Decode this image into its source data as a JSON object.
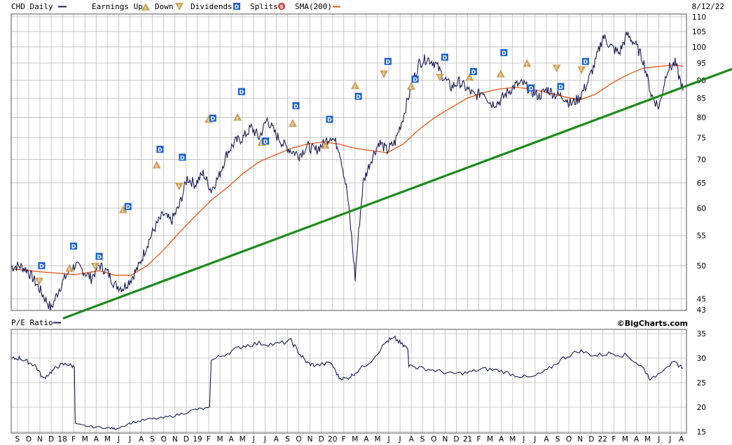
{
  "header": {
    "symbol_label": "CHD Daily",
    "earnings_up_label": "Earnings Up",
    "down_label": "Down",
    "dividends_label": "Dividends",
    "splits_label": "Splits",
    "sma_label": "SMA(200)",
    "date": "8/12/22"
  },
  "pe_panel": {
    "label": "P/E Ratio",
    "credit": "©BigCharts.com"
  },
  "colors": {
    "price": "#1c1c4e",
    "sma": "#e2581c",
    "trendline": "#1e8a1e",
    "grid": "#bdbdbd",
    "panel_border": "#555555",
    "earnings_marker": "#c9a35a",
    "dividend_marker": "#1a5fd0",
    "split_marker": "#c85050"
  },
  "chart_data": [
    {
      "type": "line",
      "title": "CHD Daily",
      "scale": "log",
      "ylim": [
        43,
        110
      ],
      "y_ticks": [
        45,
        50,
        55,
        60,
        65,
        70,
        75,
        80,
        85,
        90,
        95,
        100,
        105,
        110
      ],
      "y_tick_extra": [
        43
      ],
      "x_ticks": [
        "S",
        "O",
        "N",
        "D",
        "18",
        "F",
        "M",
        "A",
        "M",
        "J",
        "J",
        "A",
        "S",
        "O",
        "N",
        "D",
        "19",
        "F",
        "M",
        "A",
        "M",
        "J",
        "J",
        "A",
        "S",
        "O",
        "N",
        "D",
        "20",
        "F",
        "M",
        "A",
        "M",
        "J",
        "J",
        "A",
        "S",
        "O",
        "N",
        "D",
        "21",
        "F",
        "M",
        "A",
        "M",
        "J",
        "J",
        "A",
        "S",
        "O",
        "N",
        "D",
        "22",
        "F",
        "M",
        "A",
        "M",
        "J",
        "J",
        "A"
      ],
      "x_range": [
        "2017-09",
        "2022-08-12"
      ],
      "grid": true,
      "series": [
        {
          "name": "CHD Daily",
          "style": "price",
          "points": [
            [
              0,
              49.8
            ],
            [
              1,
              50.0
            ],
            [
              2,
              49.3
            ],
            [
              3,
              47.5
            ],
            [
              4,
              45.5
            ],
            [
              5,
              43.6
            ],
            [
              6,
              46.5
            ],
            [
              7,
              48.7
            ],
            [
              8,
              50.1
            ],
            [
              9,
              49.2
            ],
            [
              10,
              48.0
            ],
            [
              11,
              50.1
            ],
            [
              12,
              49.0
            ],
            [
              13,
              47.0
            ],
            [
              14,
              46.6
            ],
            [
              15,
              48.0
            ],
            [
              16,
              50.0
            ],
            [
              17,
              53.5
            ],
            [
              18,
              56.5
            ],
            [
              19,
              58.8
            ],
            [
              20,
              57.5
            ],
            [
              21,
              60.3
            ],
            [
              22,
              66.0
            ],
            [
              23,
              64.7
            ],
            [
              24,
              67.0
            ],
            [
              25,
              63.5
            ],
            [
              26,
              66.5
            ],
            [
              27,
              71.5
            ],
            [
              28,
              74.0
            ],
            [
              29,
              75.0
            ],
            [
              30,
              77.5
            ],
            [
              31,
              75.0
            ],
            [
              32,
              79.5
            ],
            [
              33,
              76.0
            ],
            [
              34,
              73.5
            ],
            [
              35,
              72.0
            ],
            [
              36,
              71.0
            ],
            [
              37,
              73.0
            ],
            [
              38,
              72.0
            ],
            [
              39,
              73.5
            ],
            [
              40,
              75.5
            ],
            [
              41,
              72.5
            ],
            [
              42,
              63.0
            ],
            [
              43,
              48.0
            ],
            [
              44,
              65.0
            ],
            [
              45,
              70.0
            ],
            [
              46,
              74.0
            ],
            [
              47,
              72.0
            ],
            [
              48,
              74.0
            ],
            [
              49,
              80.0
            ],
            [
              50,
              88.0
            ],
            [
              51,
              95.0
            ],
            [
              52,
              96.5
            ],
            [
              53,
              95.0
            ],
            [
              54,
              91.0
            ],
            [
              55,
              88.0
            ],
            [
              56,
              89.5
            ],
            [
              57,
              87.5
            ],
            [
              58,
              85.5
            ],
            [
              59,
              87.0
            ],
            [
              60,
              83.5
            ],
            [
              61,
              84.0
            ],
            [
              62,
              86.5
            ],
            [
              63,
              88.5
            ],
            [
              64,
              89.0
            ],
            [
              65,
              87.0
            ],
            [
              66,
              85.5
            ],
            [
              67,
              87.5
            ],
            [
              68,
              86.0
            ],
            [
              69,
              85.5
            ],
            [
              70,
              83.5
            ],
            [
              71,
              85.0
            ],
            [
              72,
              89.0
            ],
            [
              73,
              95.0
            ],
            [
              74,
              103.5
            ],
            [
              75,
              100.0
            ],
            [
              76,
              98.0
            ],
            [
              77,
              104.0
            ],
            [
              78,
              101.0
            ],
            [
              79,
              96.0
            ],
            [
              80,
              86.0
            ],
            [
              81,
              82.5
            ],
            [
              82,
              93.0
            ],
            [
              83,
              95.0
            ],
            [
              84,
              87.0
            ]
          ]
        },
        {
          "name": "SMA(200)",
          "style": "sma",
          "points": [
            [
              0,
              49.5
            ],
            [
              4,
              49.0
            ],
            [
              8,
              48.6
            ],
            [
              11,
              49.2
            ],
            [
              13,
              48.5
            ],
            [
              15,
              48.5
            ],
            [
              17,
              50.0
            ],
            [
              19,
              52.5
            ],
            [
              21,
              55.5
            ],
            [
              23,
              58.5
            ],
            [
              25,
              61.5
            ],
            [
              27,
              64.0
            ],
            [
              29,
              67.0
            ],
            [
              31,
              69.5
            ],
            [
              33,
              71.0
            ],
            [
              35,
              72.5
            ],
            [
              37,
              73.5
            ],
            [
              39,
              74.0
            ],
            [
              41,
              73.5
            ],
            [
              43,
              72.5
            ],
            [
              45,
              72.0
            ],
            [
              47,
              71.5
            ],
            [
              49,
              73.5
            ],
            [
              51,
              77.0
            ],
            [
              53,
              80.0
            ],
            [
              55,
              82.5
            ],
            [
              57,
              85.0
            ],
            [
              59,
              86.5
            ],
            [
              61,
              87.5
            ],
            [
              63,
              88.0
            ],
            [
              65,
              87.5
            ],
            [
              67,
              86.5
            ],
            [
              69,
              85.5
            ],
            [
              71,
              84.5
            ],
            [
              73,
              86.0
            ],
            [
              75,
              89.0
            ],
            [
              77,
              91.5
            ],
            [
              79,
              93.5
            ],
            [
              81,
              94.0
            ],
            [
              83,
              94.5
            ],
            [
              84,
              94.0
            ]
          ]
        },
        {
          "name": "",
          "style": "trendline",
          "points": [
            [
              0,
              42.3
            ],
            [
              84,
              90.0
            ]
          ]
        }
      ],
      "markers": [
        {
          "kind": "dividend",
          "x": 3.8,
          "y": 50.0
        },
        {
          "kind": "earnings_down",
          "x": 3.5,
          "y": 47.6
        },
        {
          "kind": "earnings_up",
          "x": 7.3,
          "y": 49.6
        },
        {
          "kind": "dividend",
          "x": 7.8,
          "y": 53.2
        },
        {
          "kind": "earnings_down",
          "x": 10.5,
          "y": 49.9
        },
        {
          "kind": "dividend",
          "x": 11.0,
          "y": 51.5
        },
        {
          "kind": "earnings_up",
          "x": 14.0,
          "y": 59.7
        },
        {
          "kind": "dividend",
          "x": 14.6,
          "y": 60.3
        },
        {
          "kind": "earnings_up",
          "x": 18.2,
          "y": 68.8
        },
        {
          "kind": "dividend",
          "x": 18.6,
          "y": 72.3
        },
        {
          "kind": "earnings_down",
          "x": 21.0,
          "y": 64.3
        },
        {
          "kind": "dividend",
          "x": 21.4,
          "y": 70.5
        },
        {
          "kind": "earnings_up",
          "x": 24.7,
          "y": 79.5
        },
        {
          "kind": "dividend",
          "x": 25.2,
          "y": 79.8
        },
        {
          "kind": "earnings_up",
          "x": 28.3,
          "y": 80.0
        },
        {
          "kind": "dividend",
          "x": 28.8,
          "y": 86.8
        },
        {
          "kind": "earnings_up",
          "x": 31.3,
          "y": 73.9
        },
        {
          "kind": "dividend",
          "x": 31.8,
          "y": 74.2
        },
        {
          "kind": "earnings_up",
          "x": 35.2,
          "y": 78.5
        },
        {
          "kind": "dividend",
          "x": 35.6,
          "y": 83.0
        },
        {
          "kind": "earnings_up",
          "x": 39.3,
          "y": 73.2
        },
        {
          "kind": "dividend",
          "x": 39.8,
          "y": 79.5
        },
        {
          "kind": "earnings_up",
          "x": 43.0,
          "y": 88.5
        },
        {
          "kind": "dividend",
          "x": 43.4,
          "y": 85.5
        },
        {
          "kind": "earnings_down",
          "x": 46.6,
          "y": 91.8
        },
        {
          "kind": "dividend",
          "x": 47.1,
          "y": 95.5
        },
        {
          "kind": "earnings_up",
          "x": 50.0,
          "y": 88.3
        },
        {
          "kind": "dividend",
          "x": 50.5,
          "y": 90.3
        },
        {
          "kind": "earnings_down",
          "x": 53.6,
          "y": 90.8
        },
        {
          "kind": "dividend",
          "x": 54.2,
          "y": 96.8
        },
        {
          "kind": "earnings_up",
          "x": 57.3,
          "y": 90.8
        },
        {
          "kind": "dividend",
          "x": 57.8,
          "y": 92.5
        },
        {
          "kind": "earnings_up",
          "x": 61.2,
          "y": 91.8
        },
        {
          "kind": "dividend",
          "x": 61.6,
          "y": 98.2
        },
        {
          "kind": "earnings_up",
          "x": 64.5,
          "y": 94.9
        },
        {
          "kind": "dividend",
          "x": 65.0,
          "y": 87.8
        },
        {
          "kind": "earnings_down",
          "x": 68.2,
          "y": 93.5
        },
        {
          "kind": "dividend",
          "x": 68.7,
          "y": 88.2
        },
        {
          "kind": "earnings_down",
          "x": 71.3,
          "y": 93.0
        },
        {
          "kind": "dividend",
          "x": 71.8,
          "y": 95.5
        }
      ]
    },
    {
      "type": "line",
      "title": "P/E Ratio",
      "ylim": [
        15,
        35
      ],
      "y_ticks": [
        15,
        20,
        25,
        30,
        35
      ],
      "grid": true,
      "series": [
        {
          "name": "P/E Ratio",
          "points": [
            [
              0,
              29.8
            ],
            [
              1,
              30.0
            ],
            [
              2,
              29.3
            ],
            [
              3,
              28.5
            ],
            [
              4,
              25.8
            ],
            [
              5,
              27.2
            ],
            [
              6,
              28.5
            ],
            [
              7,
              28.8
            ],
            [
              7.9,
              28.2
            ],
            [
              8.0,
              16.5
            ],
            [
              10,
              16.0
            ],
            [
              12,
              15.8
            ],
            [
              13,
              15.6
            ],
            [
              15,
              16.8
            ],
            [
              17,
              17.5
            ],
            [
              19,
              17.8
            ],
            [
              21,
              18.5
            ],
            [
              23,
              19.5
            ],
            [
              24.8,
              19.8
            ],
            [
              25.0,
              29.5
            ],
            [
              27,
              31.0
            ],
            [
              29,
              32.5
            ],
            [
              31,
              33.0
            ],
            [
              33,
              32.8
            ],
            [
              35,
              33.5
            ],
            [
              36,
              31.0
            ],
            [
              37,
              29.0
            ],
            [
              38,
              28.5
            ],
            [
              40,
              29.0
            ],
            [
              41,
              26.0
            ],
            [
              42,
              25.8
            ],
            [
              43,
              27.0
            ],
            [
              45,
              29.5
            ],
            [
              47,
              33.5
            ],
            [
              48,
              34.0
            ],
            [
              49,
              32.5
            ],
            [
              49.6,
              32.0
            ],
            [
              49.7,
              28.5
            ],
            [
              51,
              28.0
            ],
            [
              53,
              27.5
            ],
            [
              55,
              26.8
            ],
            [
              57,
              27.0
            ],
            [
              59,
              27.8
            ],
            [
              61,
              27.5
            ],
            [
              63,
              26.5
            ],
            [
              65,
              26.0
            ],
            [
              67,
              27.5
            ],
            [
              69,
              30.0
            ],
            [
              71,
              31.5
            ],
            [
              73,
              30.5
            ],
            [
              75,
              31.0
            ],
            [
              77,
              30.5
            ],
            [
              79,
              28.0
            ],
            [
              80,
              25.5
            ],
            [
              82,
              28.5
            ],
            [
              83,
              29.0
            ],
            [
              84,
              28.0
            ]
          ]
        }
      ]
    }
  ]
}
